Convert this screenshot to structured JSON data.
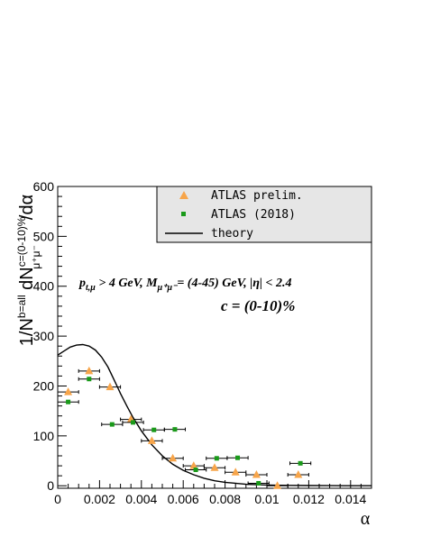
{
  "chart_data": {
    "type": "scatter",
    "xlabel": "α",
    "xlim": [
      0,
      0.015
    ],
    "ylim": [
      -5,
      600
    ],
    "xticks": [
      {
        "v": 0,
        "label": "0"
      },
      {
        "v": 0.002,
        "label": "0.002"
      },
      {
        "v": 0.004,
        "label": "0.004"
      },
      {
        "v": 0.006,
        "label": "0.006"
      },
      {
        "v": 0.008,
        "label": "0.008"
      },
      {
        "v": 0.01,
        "label": "0.01"
      },
      {
        "v": 0.012,
        "label": "0.012"
      },
      {
        "v": 0.014,
        "label": "0.014"
      }
    ],
    "yticks": [
      {
        "v": 0,
        "label": "0"
      },
      {
        "v": 100,
        "label": "100"
      },
      {
        "v": 200,
        "label": "200"
      },
      {
        "v": 300,
        "label": "300"
      },
      {
        "v": 400,
        "label": "400"
      },
      {
        "v": 500,
        "label": "500"
      },
      {
        "v": 600,
        "label": "600"
      }
    ],
    "annotations": {
      "kinematics": {
        "pt": "p",
        "pt_sub": "t,μ",
        "mid": " > 4 GeV, M",
        "m_sub": "μ⁺μ⁻",
        "rest": "= (4-45) GeV, |η| < 2.4"
      },
      "centrality": "c = (0-10)%"
    },
    "series": [
      {
        "name": "ATLAS prelim.",
        "marker": "triangle",
        "color": "#f7a54a",
        "x": [
          0.0005,
          0.0015,
          0.0025,
          0.0035,
          0.0045,
          0.0055,
          0.0065,
          0.0075,
          0.0085,
          0.0095,
          0.0105,
          0.0115
        ],
        "xerr": [
          0.0005,
          0.0005,
          0.0005,
          0.0005,
          0.0005,
          0.0005,
          0.0005,
          0.0005,
          0.0005,
          0.0005,
          0.0005,
          0.0005
        ],
        "y": [
          188,
          230,
          198,
          133,
          90,
          55,
          40,
          36,
          27,
          22,
          0,
          22
        ]
      },
      {
        "name": "ATLAS (2018)",
        "marker": "square",
        "color": "#1a9a1a",
        "x": [
          0.0005,
          0.0015,
          0.0026,
          0.0036,
          0.0046,
          0.0056,
          0.0066,
          0.0076,
          0.0086,
          0.0096,
          0.0116
        ],
        "xerr": [
          0.0005,
          0.0005,
          0.0005,
          0.0005,
          0.0005,
          0.0005,
          0.0005,
          0.0005,
          0.0005,
          0.0005,
          0.0005
        ],
        "y": [
          168,
          214,
          123,
          127,
          112,
          113,
          32,
          55,
          56,
          5,
          45
        ]
      },
      {
        "name": "theory",
        "type": "line",
        "color": "#000000",
        "x": [
          0,
          0.0003,
          0.0006,
          0.0009,
          0.0012,
          0.0015,
          0.0018,
          0.0021,
          0.0024,
          0.0027,
          0.003,
          0.0033,
          0.0036,
          0.004,
          0.0045,
          0.005,
          0.0055,
          0.006,
          0.0065,
          0.007,
          0.0075,
          0.008,
          0.009,
          0.01,
          0.011,
          0.012,
          0.013,
          0.014,
          0.015
        ],
        "y": [
          262,
          270,
          278,
          282,
          283,
          280,
          272,
          258,
          238,
          212,
          185,
          160,
          137,
          110,
          82,
          60,
          43,
          31,
          22,
          15,
          10,
          7,
          3,
          1.5,
          0.8,
          0.4,
          0.2,
          0.1,
          0.05
        ]
      }
    ],
    "legend": {
      "placement": "top-right",
      "entries": [
        "ATLAS prelim.",
        "ATLAS (2018)",
        "theory"
      ]
    }
  }
}
